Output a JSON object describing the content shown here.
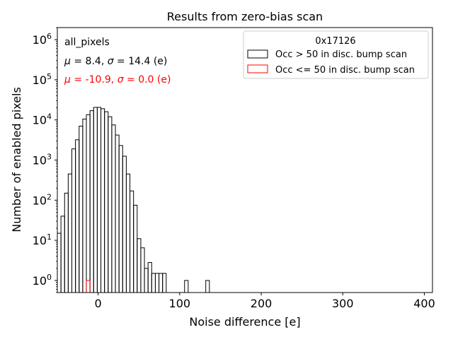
{
  "chart_data": {
    "type": "histogram",
    "title": "Results from zero-bias scan",
    "xlabel": "Noise difference [e]",
    "ylabel": "Number of enabled pixels",
    "xlim": [
      -50,
      410
    ],
    "ylim": [
      0.5,
      2000000
    ],
    "yscale": "log",
    "grid": false,
    "x_ticks": [
      {
        "value": 0,
        "label": "0"
      },
      {
        "value": 100,
        "label": "100"
      },
      {
        "value": 200,
        "label": "200"
      },
      {
        "value": 300,
        "label": "300"
      },
      {
        "value": 400,
        "label": "400"
      }
    ],
    "y_ticks": [
      {
        "value": 1,
        "base": "10",
        "exp": "0"
      },
      {
        "value": 10,
        "base": "10",
        "exp": "1"
      },
      {
        "value": 100,
        "base": "10",
        "exp": "2"
      },
      {
        "value": 1000,
        "base": "10",
        "exp": "3"
      },
      {
        "value": 10000,
        "base": "10",
        "exp": "4"
      },
      {
        "value": 100000,
        "base": "10",
        "exp": "5"
      },
      {
        "value": 1000000,
        "base": "10",
        "exp": "6"
      }
    ],
    "bin_width": 4.45,
    "stats": [
      {
        "label_parts": [
          "all_pixels"
        ],
        "color": "#000000",
        "style": "plain"
      },
      {
        "label_parts": [
          "μ",
          " = 8.4, ",
          "σ",
          " = 14.4 (e)"
        ],
        "color": "#000000",
        "style": "math"
      },
      {
        "label_parts": [
          "μ",
          " = -10.9, ",
          "σ",
          " = 0.0 (e)"
        ],
        "color": "#ff0000",
        "style": "math"
      }
    ],
    "legend": {
      "position": "top-right",
      "title": "0x17126",
      "entries": [
        "Occ > 50 in disc. bump scan",
        "Occ <= 50 in disc. bump scan"
      ]
    },
    "series": [
      {
        "name": "Occ > 50 in disc. bump scan",
        "color": "#000000",
        "bin_starts": [
          -50,
          -45.55,
          -41.1,
          -36.65,
          -32.2,
          -27.75,
          -23.3,
          -18.85,
          -14.4,
          -9.95,
          -5.5,
          -1.05,
          3.4,
          7.85,
          12.3,
          16.75,
          21.2,
          25.65,
          30.1,
          34.55,
          39.0,
          43.45,
          47.9,
          52.35,
          56.8,
          61.25,
          65.7,
          70.15,
          74.6,
          79.05,
          83.5,
          106.0,
          132.0
        ],
        "counts": [
          15,
          40,
          150,
          450,
          1900,
          3200,
          7000,
          10500,
          13500,
          17000,
          20500,
          20500,
          19000,
          16000,
          12000,
          7500,
          4200,
          2300,
          1250,
          450,
          170,
          75,
          11,
          6.5,
          2,
          2.8,
          1.5,
          1.5,
          1.5,
          1.5,
          0,
          1,
          1
        ]
      },
      {
        "name": "Occ <= 50 in disc. bump scan",
        "color": "#ff0000",
        "bin_starts": [
          -14.5
        ],
        "counts": [
          1
        ]
      }
    ]
  }
}
